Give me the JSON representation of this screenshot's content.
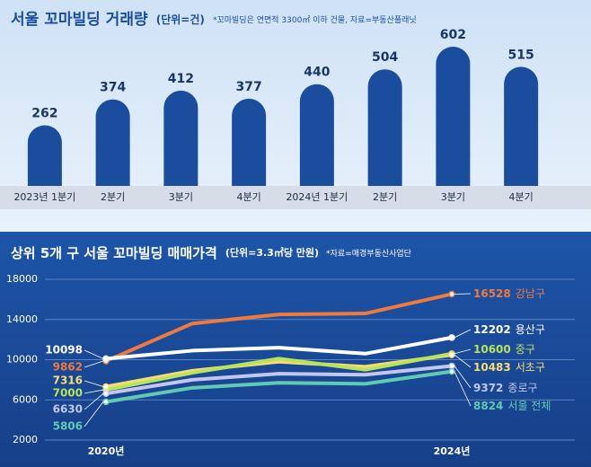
{
  "chart_data": [
    {
      "type": "bar",
      "title": "서울 꼬마빌딩 거래량",
      "subtitle": "(단위=건)",
      "note": "*꼬마빌딩은 연면적 3300㎡ 이하 건물, 자료=부동산플래닛",
      "categories": [
        "2023년 1분기",
        "2분기",
        "3분기",
        "4분기",
        "2024년 1분기",
        "2분기",
        "3분기",
        "4분기"
      ],
      "values": [
        262,
        374,
        412,
        377,
        440,
        504,
        602,
        515
      ],
      "color": "#1b4d9e"
    },
    {
      "type": "line",
      "title": "상위 5개 구 서울 꼬마빌딩 매매가격",
      "subtitle": "(단위=3.3㎡당 만원)",
      "note": "*자료=매경부동산사업단",
      "categories": [
        "2020년",
        null,
        null,
        null,
        "2024년"
      ],
      "ylim": [
        2000,
        18000
      ],
      "yticks": [
        2000,
        6000,
        10000,
        14000,
        18000
      ],
      "grid": true,
      "series": [
        {
          "name": "강남구",
          "color": "#ee7a3e",
          "values": [
            9862,
            13600,
            14500,
            14600,
            16528
          ]
        },
        {
          "name": "용산구",
          "color": "#ffffff",
          "values": [
            10098,
            10900,
            11200,
            10600,
            12202
          ]
        },
        {
          "name": "중구",
          "color": "#b8e35c",
          "values": [
            7000,
            8700,
            10100,
            9000,
            10600
          ]
        },
        {
          "name": "서초구",
          "color": "#f7dc74",
          "values": [
            7316,
            8900,
            9800,
            9300,
            10483
          ]
        },
        {
          "name": "종로구",
          "color": "#c3c7ef",
          "values": [
            6630,
            8000,
            8600,
            8500,
            9372
          ]
        },
        {
          "name": "서울 전체",
          "color": "#63c9b2",
          "values": [
            5806,
            7200,
            7700,
            7600,
            8824
          ]
        }
      ]
    }
  ]
}
